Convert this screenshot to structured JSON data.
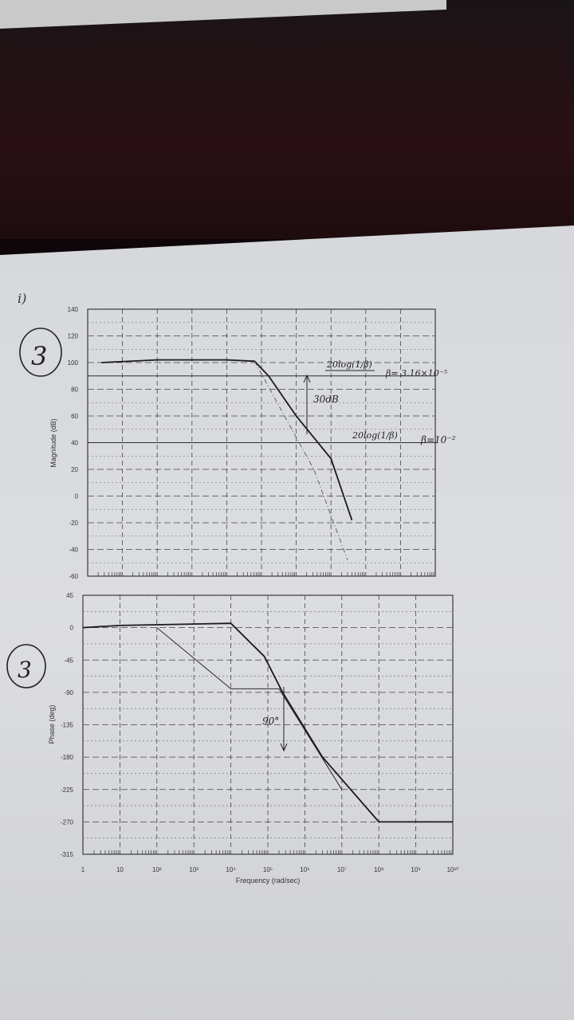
{
  "page": {
    "corner_note": "i)",
    "problem_number_top": "3",
    "problem_number_bottom": "3"
  },
  "chart_data": [
    {
      "type": "line",
      "title": "",
      "xlabel": "",
      "ylabel": "Magnitude (dB)",
      "xscale": "log",
      "xlim": [
        1,
        10000000000
      ],
      "ylim": [
        -60,
        140
      ],
      "yticks": [
        140,
        120,
        100,
        80,
        60,
        40,
        20,
        0,
        -20,
        -40,
        -60
      ],
      "grid": true,
      "series": [
        {
          "name": "",
          "style": "solid",
          "x": [
            2.5,
            100,
            10000,
            63000,
            160000,
            1000000,
            10000000,
            40000000
          ],
          "y": [
            100,
            102,
            102,
            101,
            90,
            60,
            28,
            -18
          ]
        },
        {
          "name": "",
          "style": "dashdot",
          "x": [
            63000,
            3200000,
            30000000
          ],
          "y": [
            101,
            20,
            -48
          ]
        }
      ],
      "annotations": {
        "label_upper": "20log(1/β)",
        "beta_upper": "β= 3.16×10⁻⁵",
        "gap_label": "30dB",
        "label_lower": "20log(1/β)",
        "beta_lower": "β=10⁻²"
      },
      "reference_levels": [
        90,
        40
      ]
    },
    {
      "type": "line",
      "title": "",
      "xlabel": "Frequency (rad/sec)",
      "ylabel": "Phase (deg)",
      "xscale": "log",
      "xlim": [
        1,
        10000000000
      ],
      "xticks": [
        "1",
        "10",
        "10²",
        "10³",
        "10⁴",
        "10⁵",
        "10⁶",
        "10⁷",
        "10⁸",
        "10⁹",
        "10¹⁰"
      ],
      "ylim": [
        -315,
        45
      ],
      "yticks": [
        45,
        0,
        -45,
        -90,
        -135,
        -180,
        -225,
        -270,
        -315
      ],
      "grid": true,
      "series": [
        {
          "name": "",
          "style": "solid",
          "x": [
            1,
            10,
            10000,
            80000,
            250000,
            3000000,
            100000000,
            10000000000
          ],
          "y": [
            0,
            3,
            6,
            -40,
            -90,
            -180,
            -270,
            -270
          ]
        },
        {
          "name": "",
          "style": "thin",
          "x": [
            100,
            10000,
            200000,
            10000000
          ],
          "y": [
            0,
            -85,
            -85,
            -225
          ]
        }
      ],
      "annotations": {
        "gap_label": "90°"
      }
    }
  ]
}
